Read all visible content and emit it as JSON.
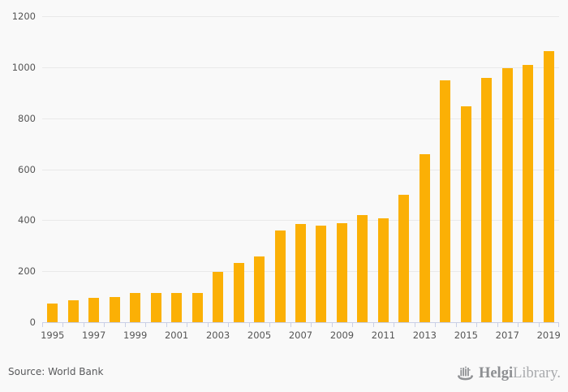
{
  "chart_data": {
    "type": "bar",
    "title": "",
    "xlabel": "",
    "ylabel": "",
    "categories": [
      1995,
      1996,
      1997,
      1998,
      1999,
      2000,
      2001,
      2002,
      2003,
      2004,
      2005,
      2006,
      2007,
      2008,
      2009,
      2010,
      2011,
      2012,
      2013,
      2014,
      2015,
      2016,
      2017,
      2018,
      2019
    ],
    "values": [
      72,
      85,
      95,
      98,
      116,
      114,
      114,
      114,
      196,
      231,
      257,
      360,
      384,
      378,
      389,
      421,
      408,
      500,
      658,
      950,
      847,
      958,
      995,
      1009,
      1064
    ],
    "ylim": [
      0,
      1200
    ],
    "ytick_step": 200,
    "xlabel_every_n_years": 2,
    "grid": true,
    "legend": "none",
    "bar_color": "#fbb005",
    "background_color": "#f9f9f9",
    "gridline_color": "#e9e9e9",
    "axis_color": "#c9cfe6",
    "tick_label_color": "#555555"
  },
  "footer": {
    "source": "Source: World Bank",
    "logo": {
      "bold": "Helgi",
      "light": "Library.",
      "icon": "helgi-ship-icon",
      "bold_color": "#8d8f92",
      "light_color": "#a7a9ac",
      "icon_color": "#8f9194",
      "source_color": "#58595b"
    }
  }
}
